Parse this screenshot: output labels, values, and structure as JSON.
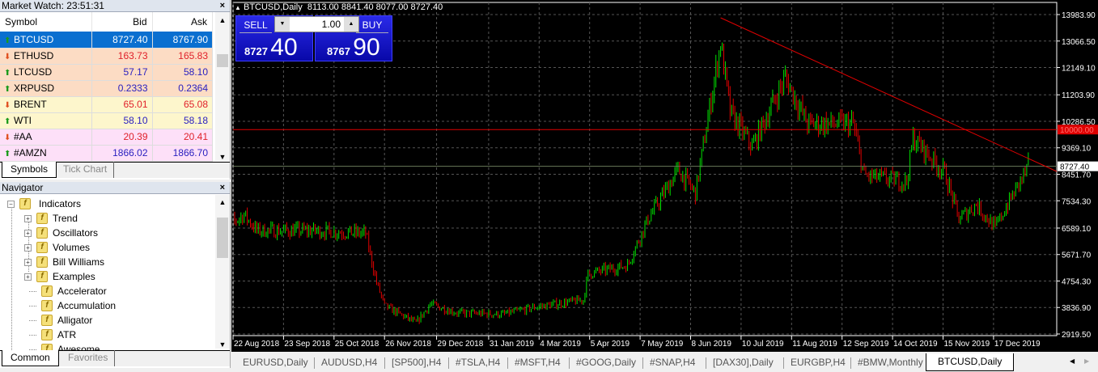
{
  "market_watch": {
    "title": "Market Watch: 23:51:31",
    "headers": [
      "Symbol",
      "Bid",
      "Ask"
    ],
    "rows": [
      {
        "symbol": "BTCUSD",
        "bid": "8727.40",
        "ask": "8767.90",
        "dir": "up",
        "bg": "#0a6fd0"
      },
      {
        "symbol": "ETHUSD",
        "bid": "163.73",
        "ask": "165.83",
        "dir": "down",
        "bg": "#fcdcc4"
      },
      {
        "symbol": "LTCUSD",
        "bid": "57.17",
        "ask": "58.10",
        "dir": "up",
        "bg": "#fcdcc4"
      },
      {
        "symbol": "XRPUSD",
        "bid": "0.2333",
        "ask": "0.2364",
        "dir": "up",
        "bg": "#fcdcc4"
      },
      {
        "symbol": "BRENT",
        "bid": "65.01",
        "ask": "65.08",
        "dir": "down",
        "bg": "#fdf6cc"
      },
      {
        "symbol": "WTI",
        "bid": "58.10",
        "ask": "58.18",
        "dir": "up",
        "bg": "#fdf6cc"
      },
      {
        "symbol": "#AA",
        "bid": "20.39",
        "ask": "20.41",
        "dir": "down",
        "bg": "#fde0f8"
      },
      {
        "symbol": "#AMZN",
        "bid": "1866.02",
        "ask": "1866.70",
        "dir": "up",
        "bg": "#fde0f8"
      }
    ],
    "tabs": [
      "Symbols",
      "Tick Chart"
    ]
  },
  "navigator": {
    "title": "Navigator",
    "root": "Indicators",
    "folders": [
      "Trend",
      "Oscillators",
      "Volumes",
      "Bill Williams",
      "Examples"
    ],
    "items": [
      "Accelerator",
      "Accumulation",
      "Alligator",
      "ATR",
      "Awesome"
    ],
    "tabs": [
      "Common",
      "Favorites"
    ]
  },
  "chart": {
    "header": "BTCUSD,Daily",
    "ohlc": "8113.00 8841.40 8077.00 8727.40",
    "trade": {
      "sell": "SELL",
      "buy": "BUY",
      "lot": "1.00",
      "bid_big": "8727",
      "bid_small": "40",
      "ask_big": "8767",
      "ask_small": "90"
    },
    "price_ticks": [
      "13983.90",
      "13066.50",
      "12149.10",
      "11203.90",
      "10286.50",
      "9369.10",
      "8451.70",
      "7534.30",
      "6589.10",
      "5671.70",
      "4754.30",
      "3836.90",
      "2919.50"
    ],
    "level_line": "10000.00",
    "current_price": "8727.40",
    "date_ticks": [
      "22 Aug 2018",
      "23 Sep 2018",
      "25 Oct 2018",
      "26 Nov 2018",
      "29 Dec 2018",
      "31 Jan 2019",
      "4 Mar 2019",
      "5 Apr 2019",
      "7 May 2019",
      "8 Jun 2019",
      "10 Jul 2019",
      "11 Aug 2019",
      "12 Sep 2019",
      "14 Oct 2019",
      "15 Nov 2019",
      "17 Dec 2019"
    ],
    "colors": {
      "bull": "#00e000",
      "bear": "#e00000",
      "level": "#e00000",
      "trendline": "#e00000"
    }
  },
  "chart_data": {
    "type": "candlestick",
    "approx_closes": [
      [
        "2018-08-13",
        6500
      ],
      [
        "2018-08-28",
        7050
      ],
      [
        "2018-09-05",
        6500
      ],
      [
        "2018-10-10",
        6500
      ],
      [
        "2018-11-13",
        6400
      ],
      [
        "2018-11-20",
        4700
      ],
      [
        "2018-11-25",
        3900
      ],
      [
        "2018-12-15",
        3300
      ],
      [
        "2018-12-24",
        3950
      ],
      [
        "2019-01-10",
        3650
      ],
      [
        "2019-02-08",
        3600
      ],
      [
        "2019-03-01",
        3850
      ],
      [
        "2019-03-31",
        4100
      ],
      [
        "2019-04-03",
        5000
      ],
      [
        "2019-04-28",
        5300
      ],
      [
        "2019-05-11",
        6900
      ],
      [
        "2019-05-30",
        8600
      ],
      [
        "2019-06-10",
        7800
      ],
      [
        "2019-06-26",
        13000
      ],
      [
        "2019-07-02",
        10600
      ],
      [
        "2019-07-16",
        9400
      ],
      [
        "2019-08-06",
        11800
      ],
      [
        "2019-08-20",
        10200
      ],
      [
        "2019-09-18",
        10200
      ],
      [
        "2019-09-25",
        8400
      ],
      [
        "2019-10-22",
        8200
      ],
      [
        "2019-10-26",
        9700
      ],
      [
        "2019-11-15",
        8500
      ],
      [
        "2019-11-24",
        6900
      ],
      [
        "2019-12-05",
        7400
      ],
      [
        "2019-12-17",
        6600
      ],
      [
        "2020-01-07",
        8727.4
      ]
    ],
    "ylim": [
      2919.5,
      13983.9
    ]
  },
  "tabs": [
    "EURUSD,Daily",
    "AUDUSD,H4",
    "[SP500],H4",
    "#TSLA,H4",
    "#MSFT,H4",
    "#GOOG,Daily",
    "#SNAP,H4",
    "[DAX30],Daily",
    "EURGBP,H4",
    "#BMW,Monthly",
    "BTCUSD,Daily"
  ]
}
